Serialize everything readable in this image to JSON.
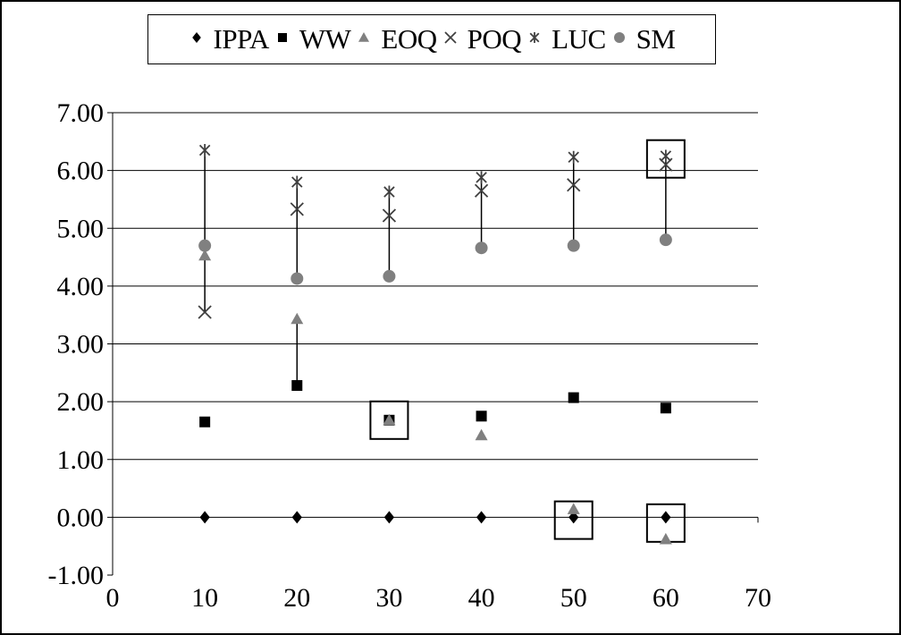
{
  "colors": {
    "ippa": "#000000",
    "ww": "#000000",
    "eoq": "#808080",
    "poq": "#404040",
    "luc": "#404040",
    "sm": "#808080",
    "gridline": "#000000",
    "highlight_box": "#000000"
  },
  "chart_data": {
    "type": "scatter",
    "legend_position": "top",
    "grid": {
      "horizontal": true,
      "vertical": false
    },
    "xlim": [
      0,
      70
    ],
    "ylim": [
      -1,
      7
    ],
    "x_ticks": [
      0,
      10,
      20,
      30,
      40,
      50,
      60,
      70
    ],
    "y_ticks": [
      -1,
      0,
      1,
      2,
      3,
      4,
      5,
      6,
      7
    ],
    "x_tick_labels": [
      "0",
      "10",
      "20",
      "30",
      "40",
      "50",
      "60",
      "70"
    ],
    "y_tick_labels": [
      "-1.00",
      "0.00",
      "1.00",
      "2.00",
      "3.00",
      "4.00",
      "5.00",
      "6.00",
      "7.00"
    ],
    "x": [
      10,
      20,
      30,
      40,
      50,
      60
    ],
    "series": [
      {
        "name": "IPPA",
        "marker": "diamond",
        "color": "#000000",
        "values": [
          0.0,
          0.0,
          0.0,
          0.0,
          0.0,
          0.0
        ]
      },
      {
        "name": "WW",
        "marker": "square",
        "color": "#000000",
        "values": [
          1.65,
          2.28,
          1.68,
          1.75,
          2.07,
          1.89
        ]
      },
      {
        "name": "EOQ",
        "marker": "triangle",
        "color": "#808080",
        "values": [
          4.53,
          3.43,
          1.68,
          1.42,
          0.14,
          -0.38
        ]
      },
      {
        "name": "POQ",
        "marker": "x",
        "color": "#404040",
        "values": [
          3.55,
          5.33,
          5.22,
          5.65,
          5.75,
          6.1
        ]
      },
      {
        "name": "LUC",
        "marker": "star",
        "color": "#404040",
        "values": [
          6.35,
          5.8,
          5.63,
          5.88,
          6.23,
          6.25
        ]
      },
      {
        "name": "SM",
        "marker": "circle",
        "color": "#808080",
        "values": [
          4.7,
          4.13,
          4.17,
          4.66,
          4.7,
          4.8
        ]
      }
    ],
    "connectors": [
      {
        "x": 10,
        "from": 3.55,
        "to": 4.53
      },
      {
        "x": 10,
        "from": 4.7,
        "to": 6.35
      },
      {
        "x": 20,
        "from": 2.28,
        "to": 3.43
      },
      {
        "x": 20,
        "from": 4.13,
        "to": 5.8
      },
      {
        "x": 30,
        "from": 4.17,
        "to": 5.63
      },
      {
        "x": 40,
        "from": 4.66,
        "to": 5.88
      },
      {
        "x": 50,
        "from": 0.0,
        "to": 0.14
      },
      {
        "x": 50,
        "from": 4.7,
        "to": 6.23
      },
      {
        "x": 60,
        "from": 4.8,
        "to": 6.25
      }
    ],
    "highlight_boxes": [
      {
        "x": 30,
        "y": 1.68
      },
      {
        "x": 50,
        "y": -0.05
      },
      {
        "x": 60,
        "y": -0.1
      },
      {
        "x": 60,
        "y": 6.2
      }
    ]
  }
}
